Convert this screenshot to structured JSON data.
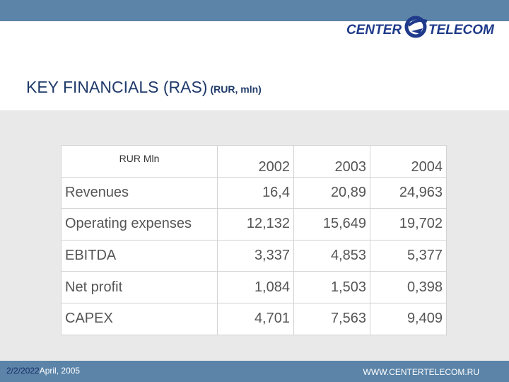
{
  "header": {
    "logo_left": "CENTER",
    "logo_right": "TELECOM",
    "brand_color": "#1f3a8a"
  },
  "title": {
    "main": "KEY FINANCIALS (RAS)",
    "unit": "(RUR, mln)"
  },
  "table": {
    "corner_label": "RUR Mln",
    "years": [
      "2002",
      "2003",
      "2004"
    ],
    "rows": [
      {
        "label": "Revenues",
        "values": [
          "16,4",
          "20,89",
          "24,963"
        ]
      },
      {
        "label": "Operating expenses",
        "values": [
          "12,132",
          "15,649",
          "19,702"
        ]
      },
      {
        "label": "EBITDA",
        "values": [
          "3,337",
          "4,853",
          "5,377"
        ]
      },
      {
        "label": "Net profit",
        "values": [
          "1,084",
          "1,503",
          "0,398"
        ]
      },
      {
        "label": "CAPEX",
        "values": [
          "4,701",
          "7,563",
          "9,409"
        ]
      }
    ]
  },
  "footer": {
    "date": "2/2/2022",
    "period": "April, 2005",
    "website": "WWW.CENTERTELECOM.RU"
  },
  "colors": {
    "bar": "#5b84a8",
    "panel": "#e9e9e9",
    "title": "#1f3a6a"
  }
}
